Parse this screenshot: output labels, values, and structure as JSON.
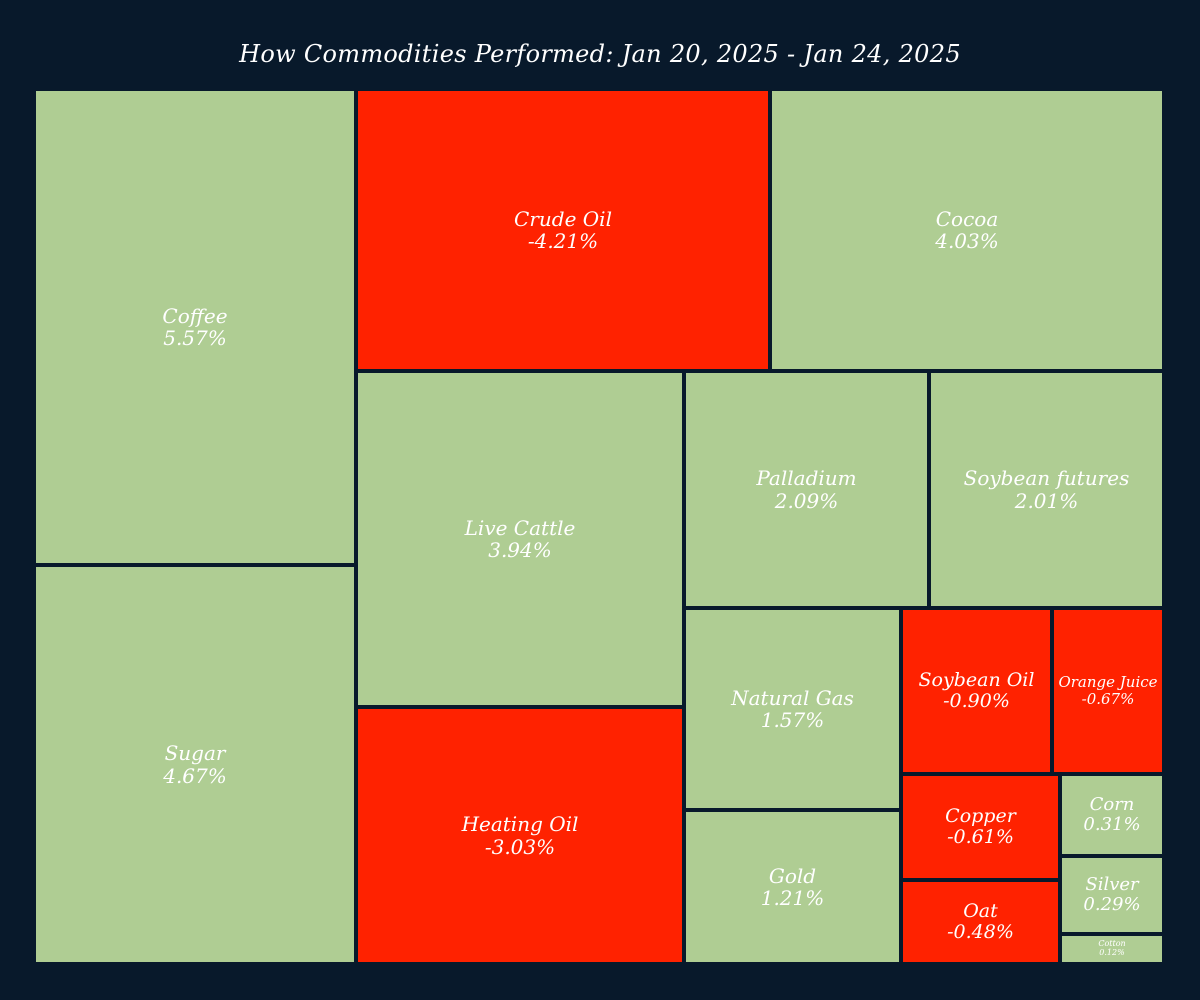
{
  "chart_data": {
    "type": "treemap",
    "title": "How Commodities Performed: Jan 20, 2025 - Jan 24, 2025",
    "colors": {
      "background": "#08192b",
      "positive": "#afcd93",
      "negative": "#ff2200",
      "label": "#ffffff"
    },
    "items": [
      {
        "name": "Coffee",
        "change": 5.57,
        "label": "5.57%"
      },
      {
        "name": "Sugar",
        "change": 4.67,
        "label": "4.67%"
      },
      {
        "name": "Crude Oil",
        "change": -4.21,
        "label": "-4.21%"
      },
      {
        "name": "Cocoa",
        "change": 4.03,
        "label": "4.03%"
      },
      {
        "name": "Live Cattle",
        "change": 3.94,
        "label": "3.94%"
      },
      {
        "name": "Heating Oil",
        "change": -3.03,
        "label": "-3.03%"
      },
      {
        "name": "Palladium",
        "change": 2.09,
        "label": "2.09%"
      },
      {
        "name": "Soybean futures",
        "change": 2.01,
        "label": "2.01%"
      },
      {
        "name": "Natural Gas",
        "change": 1.57,
        "label": "1.57%"
      },
      {
        "name": "Gold",
        "change": 1.21,
        "label": "1.21%"
      },
      {
        "name": "Soybean Oil",
        "change": -0.9,
        "label": "-0.90%"
      },
      {
        "name": "Orange Juice",
        "change": -0.67,
        "label": "-0.67%"
      },
      {
        "name": "Copper",
        "change": -0.61,
        "label": "-0.61%"
      },
      {
        "name": "Oat",
        "change": -0.48,
        "label": "-0.48%"
      },
      {
        "name": "Corn",
        "change": 0.31,
        "label": "0.31%"
      },
      {
        "name": "Silver",
        "change": 0.29,
        "label": "0.29%"
      },
      {
        "name": "Cotton",
        "change": 0.12,
        "label": "0.12%"
      }
    ]
  }
}
